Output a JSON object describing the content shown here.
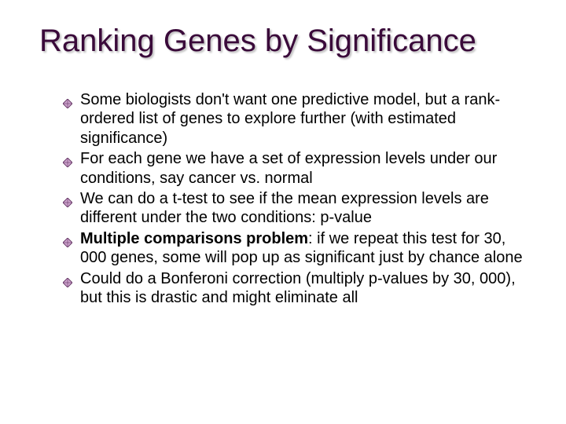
{
  "title_color": "#3a0a3a",
  "text_color": "#000000",
  "bullet_fill": "#c9a0c9",
  "bullet_stroke": "#5a2a5a",
  "title_fontsize": 40,
  "body_fontsize": 20,
  "background_color": "#ffffff",
  "slide": {
    "title": "Ranking Genes by Significance",
    "bullets": [
      {
        "text": "Some biologists don't want one predictive model, but a rank-ordered list of genes to explore further (with estimated significance)"
      },
      {
        "text": "For each gene we have a set of expression levels under our conditions, say cancer vs. normal"
      },
      {
        "text": "We can do a t-test to see if the mean expression levels are different under the two conditions: p-value"
      },
      {
        "bold_lead": "Multiple comparisons problem",
        "text": ": if we repeat this test for 30, 000 genes, some will pop up as significant just by chance alone"
      },
      {
        "text": "Could do a Bonferoni correction (multiply p-values by 30, 000), but this is drastic and might eliminate all"
      }
    ]
  }
}
